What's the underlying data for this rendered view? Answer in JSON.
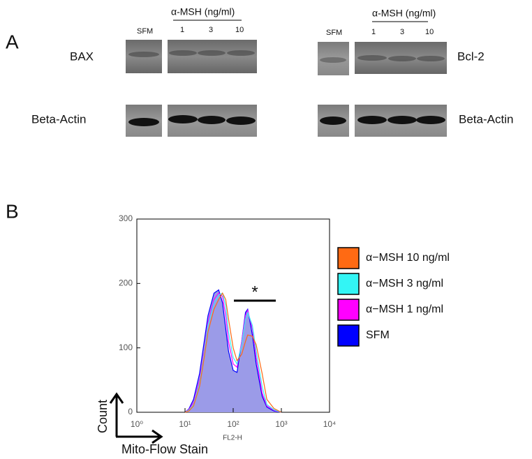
{
  "panel_a": {
    "label": "A",
    "left": {
      "header": "α-MSH (ng/ml)",
      "control": "SFM",
      "doses": [
        "1",
        "3",
        "10"
      ],
      "target": "BAX",
      "loading": "Beta-Actin"
    },
    "right": {
      "header": "α-MSH (ng/ml)",
      "control": "SFM",
      "doses": [
        "1",
        "3",
        "10"
      ],
      "target": "Bcl-2",
      "loading": "Beta-Actin"
    }
  },
  "chart_data": {
    "type": "histogram",
    "panel_label": "B",
    "annotation": "*",
    "x_label": "FL2-H",
    "x_arrow_label": "Mito-Flow Stain",
    "y_arrow_label": "Count",
    "log_x": true,
    "xlim": [
      1,
      10000
    ],
    "xticks": [
      {
        "value": 1,
        "label": "10⁰"
      },
      {
        "value": 10,
        "label": "10¹"
      },
      {
        "value": 100,
        "label": "10²"
      },
      {
        "value": 1000,
        "label": "10³"
      },
      {
        "value": 10000,
        "label": "10⁴"
      }
    ],
    "ylim": [
      0,
      300
    ],
    "yticks": [
      0,
      100,
      200,
      300
    ],
    "x": [
      10,
      12,
      15,
      20,
      25,
      30,
      40,
      50,
      60,
      70,
      80,
      100,
      120,
      150,
      180,
      200,
      250,
      300,
      400,
      500,
      700,
      1000
    ],
    "series": [
      {
        "name": "α−MSH 10 ng/ml",
        "color": "#ff6a13",
        "values": [
          0,
          2,
          10,
          40,
          85,
          125,
          160,
          175,
          185,
          175,
          145,
          100,
          80,
          90,
          110,
          120,
          118,
          105,
          60,
          20,
          6,
          0
        ]
      },
      {
        "name": "α−MSH 3 ng/ml",
        "color": "#33f5f5",
        "values": [
          0,
          3,
          12,
          45,
          90,
          135,
          170,
          182,
          185,
          165,
          125,
          85,
          75,
          105,
          145,
          155,
          135,
          95,
          40,
          12,
          4,
          0
        ]
      },
      {
        "name": "α−MSH 1 ng/ml",
        "color": "#ff00ff",
        "values": [
          0,
          4,
          15,
          50,
          95,
          140,
          175,
          185,
          180,
          150,
          110,
          75,
          70,
          110,
          150,
          158,
          130,
          85,
          30,
          10,
          3,
          0
        ]
      },
      {
        "name": "SFM",
        "color": "#0000ff",
        "fill": "#9b9be8",
        "values": [
          0,
          5,
          20,
          60,
          110,
          150,
          185,
          190,
          170,
          130,
          95,
          65,
          62,
          110,
          155,
          160,
          120,
          75,
          25,
          8,
          2,
          0
        ]
      }
    ]
  }
}
